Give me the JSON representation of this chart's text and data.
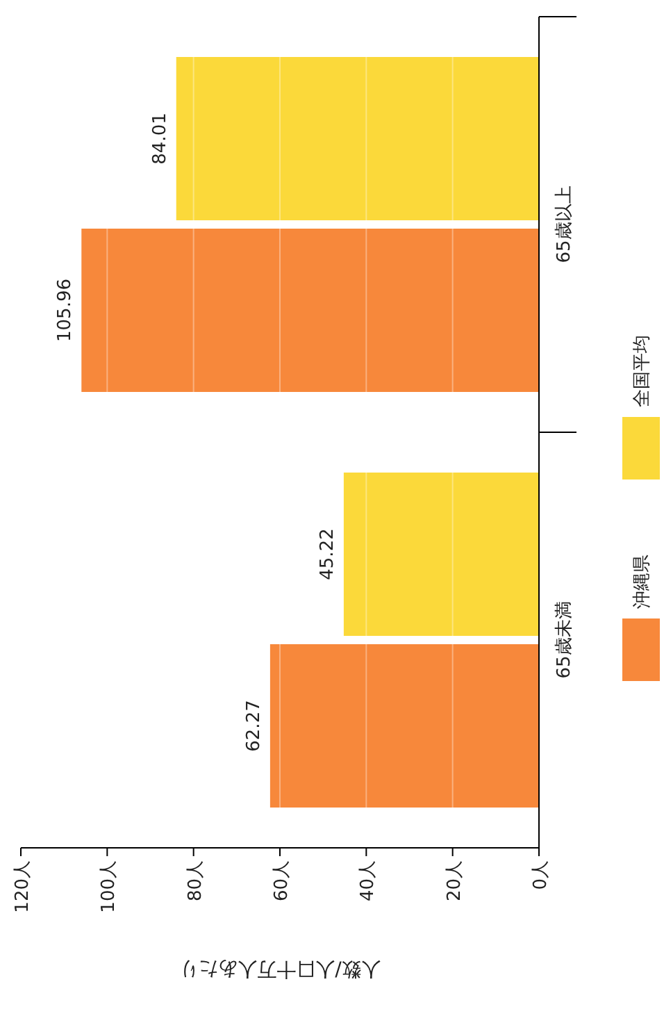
{
  "chart_data": {
    "type": "bar",
    "orientation": "horizontal",
    "xlabel": "人数/人口十万人あたり",
    "categories": [
      "65歳以上",
      "65歳未満"
    ],
    "series": [
      {
        "name": "沖縄県",
        "color": "#f7883b",
        "values": [
          105.96,
          62.27
        ]
      },
      {
        "name": "全国平均",
        "color": "#fbd93a",
        "values": [
          84.01,
          45.22
        ]
      }
    ],
    "xlim": [
      120,
      0
    ],
    "xticks": [
      {
        "value": 120,
        "label": "120人"
      },
      {
        "value": 100,
        "label": "100人"
      },
      {
        "value": 80,
        "label": "80人"
      },
      {
        "value": 60,
        "label": "60人"
      },
      {
        "value": 40,
        "label": "40人"
      },
      {
        "value": 20,
        "label": "20人"
      },
      {
        "value": 0,
        "label": "0人"
      }
    ],
    "grid": "x",
    "legend": "right",
    "data_labels": true
  }
}
